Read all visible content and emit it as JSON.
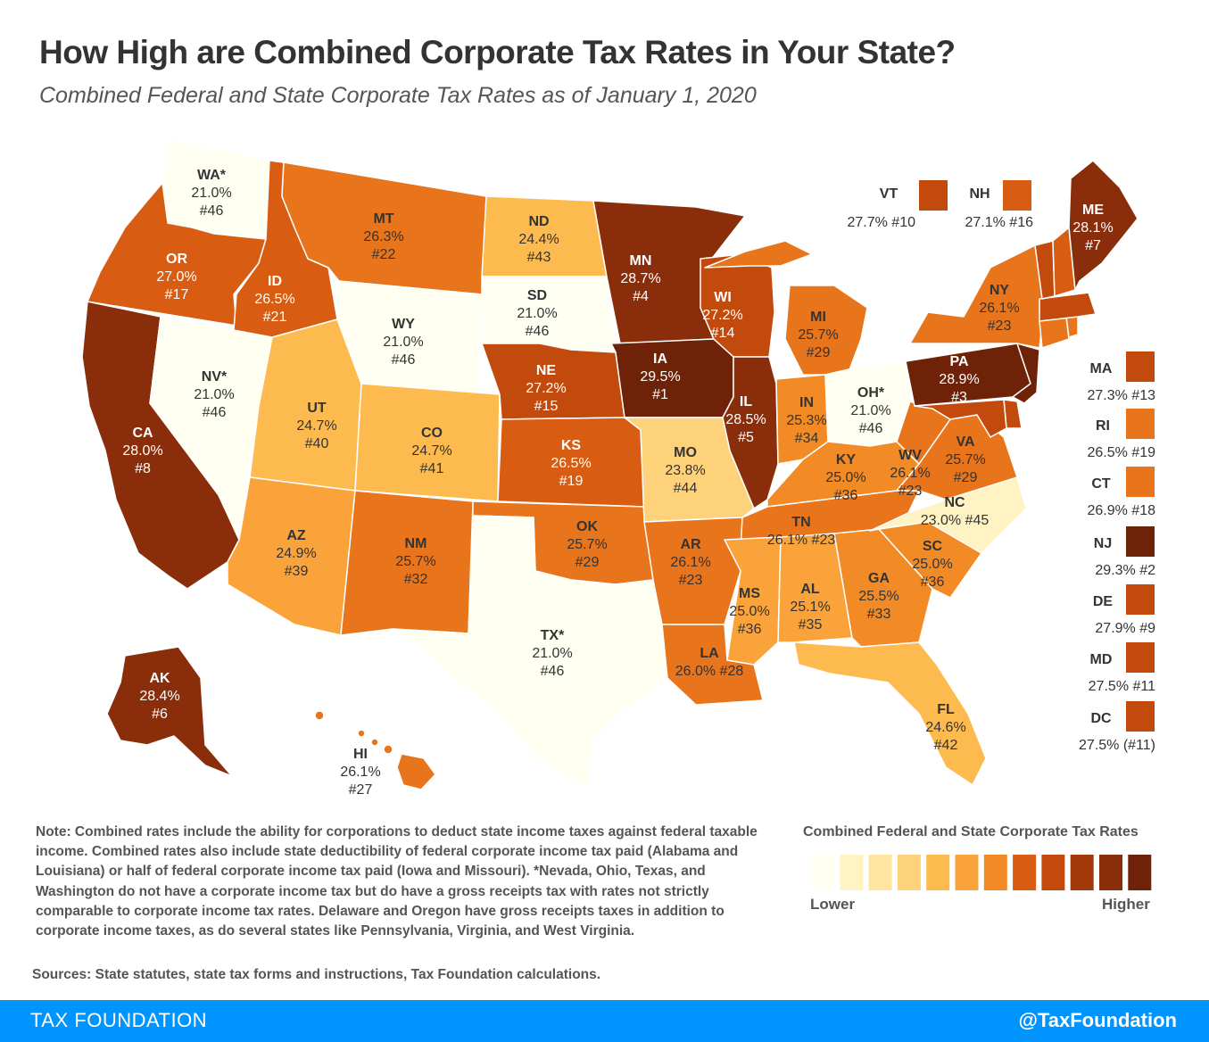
{
  "header": {
    "title": "How High are Combined Corporate Tax Rates in Your State?",
    "subtitle": "Combined Federal and State Corporate Tax Rates as of January 1, 2020"
  },
  "colors": {
    "c1": "#fffff2",
    "c2": "#fff3c4",
    "c3": "#fee6a0",
    "c4": "#fdd27a",
    "c5": "#fdbb4f",
    "c6": "#faa33a",
    "c7": "#f28a25",
    "c8": "#e8741c",
    "c9": "#d85c12",
    "c10": "#c24a0d",
    "c11": "#a3380a",
    "c12": "#8a2d0a",
    "c13": "#6e2208"
  },
  "states": [
    {
      "abbr": "WA*",
      "rate": "21.0%",
      "rank": "#46",
      "color": "c1"
    },
    {
      "abbr": "OR",
      "rate": "27.0%",
      "rank": "#17",
      "color": "c9"
    },
    {
      "abbr": "CA",
      "rate": "28.0%",
      "rank": "#8",
      "color": "c12"
    },
    {
      "abbr": "NV*",
      "rate": "21.0%",
      "rank": "#46",
      "color": "c1"
    },
    {
      "abbr": "ID",
      "rate": "26.5%",
      "rank": "#21",
      "color": "c9"
    },
    {
      "abbr": "MT",
      "rate": "26.3%",
      "rank": "#22",
      "color": "c8"
    },
    {
      "abbr": "WY",
      "rate": "21.0%",
      "rank": "#46",
      "color": "c1"
    },
    {
      "abbr": "UT",
      "rate": "24.7%",
      "rank": "#40",
      "color": "c5"
    },
    {
      "abbr": "CO",
      "rate": "24.7%",
      "rank": "#41",
      "color": "c5"
    },
    {
      "abbr": "AZ",
      "rate": "24.9%",
      "rank": "#39",
      "color": "c6"
    },
    {
      "abbr": "NM",
      "rate": "25.7%",
      "rank": "#32",
      "color": "c8"
    },
    {
      "abbr": "ND",
      "rate": "24.4%",
      "rank": "#43",
      "color": "c5"
    },
    {
      "abbr": "SD",
      "rate": "21.0%",
      "rank": "#46",
      "color": "c1"
    },
    {
      "abbr": "NE",
      "rate": "27.2%",
      "rank": "#15",
      "color": "c10"
    },
    {
      "abbr": "KS",
      "rate": "26.5%",
      "rank": "#19",
      "color": "c9"
    },
    {
      "abbr": "OK",
      "rate": "25.7%",
      "rank": "#29",
      "color": "c8"
    },
    {
      "abbr": "TX*",
      "rate": "21.0%",
      "rank": "#46",
      "color": "c1"
    },
    {
      "abbr": "MN",
      "rate": "28.7%",
      "rank": "#4",
      "color": "c12"
    },
    {
      "abbr": "IA",
      "rate": "29.5%",
      "rank": "#1",
      "color": "c13"
    },
    {
      "abbr": "MO",
      "rate": "23.8%",
      "rank": "#44",
      "color": "c4"
    },
    {
      "abbr": "AR",
      "rate": "26.1%",
      "rank": "#23",
      "color": "c8"
    },
    {
      "abbr": "LA",
      "rate": "26.0%",
      "rank": "#28",
      "color": "c8"
    },
    {
      "abbr": "WI",
      "rate": "27.2%",
      "rank": "#14",
      "color": "c10"
    },
    {
      "abbr": "IL",
      "rate": "28.5%",
      "rank": "#5",
      "color": "c12"
    },
    {
      "abbr": "MI",
      "rate": "25.7%",
      "rank": "#29",
      "color": "c8"
    },
    {
      "abbr": "IN",
      "rate": "25.3%",
      "rank": "#34",
      "color": "c7"
    },
    {
      "abbr": "OH*",
      "rate": "21.0%",
      "rank": "#46",
      "color": "c1"
    },
    {
      "abbr": "KY",
      "rate": "25.0%",
      "rank": "#36",
      "color": "c7"
    },
    {
      "abbr": "TN",
      "rate": "26.1%",
      "rank": "#23",
      "color": "c8"
    },
    {
      "abbr": "MS",
      "rate": "25.0%",
      "rank": "#36",
      "color": "c6"
    },
    {
      "abbr": "AL",
      "rate": "25.1%",
      "rank": "#35",
      "color": "c6"
    },
    {
      "abbr": "GA",
      "rate": "25.5%",
      "rank": "#33",
      "color": "c7"
    },
    {
      "abbr": "FL",
      "rate": "24.6%",
      "rank": "#42",
      "color": "c5"
    },
    {
      "abbr": "SC",
      "rate": "25.0%",
      "rank": "#36",
      "color": "c7"
    },
    {
      "abbr": "NC",
      "rate": "23.0%",
      "rank": "#45",
      "color": "c2"
    },
    {
      "abbr": "VA",
      "rate": "25.7%",
      "rank": "#29",
      "color": "c8"
    },
    {
      "abbr": "WV",
      "rate": "26.1%",
      "rank": "#23",
      "color": "c8"
    },
    {
      "abbr": "PA",
      "rate": "28.9%",
      "rank": "#3",
      "color": "c13"
    },
    {
      "abbr": "NY",
      "rate": "26.1%",
      "rank": "#23",
      "color": "c8"
    },
    {
      "abbr": "ME",
      "rate": "28.1%",
      "rank": "#7",
      "color": "c12"
    },
    {
      "abbr": "AK",
      "rate": "28.4%",
      "rank": "#6",
      "color": "c12"
    },
    {
      "abbr": "HI",
      "rate": "26.1%",
      "rank": "#27",
      "color": "c8"
    }
  ],
  "callouts": [
    {
      "abbr": "VT",
      "rate": "27.7%",
      "rank": "#10",
      "color": "c10"
    },
    {
      "abbr": "NH",
      "rate": "27.1%",
      "rank": "#16",
      "color": "c9"
    },
    {
      "abbr": "MA",
      "rate": "27.3%",
      "rank": "#13",
      "color": "c10"
    },
    {
      "abbr": "RI",
      "rate": "26.5%",
      "rank": "#19",
      "color": "c8"
    },
    {
      "abbr": "CT",
      "rate": "26.9%",
      "rank": "#18",
      "color": "c8"
    },
    {
      "abbr": "NJ",
      "rate": "29.3%",
      "rank": "#2",
      "color": "c13"
    },
    {
      "abbr": "DE",
      "rate": "27.9%",
      "rank": "#9",
      "color": "c10"
    },
    {
      "abbr": "MD",
      "rate": "27.5%",
      "rank": "#11",
      "color": "c10"
    },
    {
      "abbr": "DC",
      "rate": "27.5%",
      "rank": "(#11)",
      "color": "c10"
    }
  ],
  "legend": {
    "title": "Combined Federal and State Corporate Tax Rates",
    "lower": "Lower",
    "higher": "Higher",
    "swatches": [
      "c1",
      "c2",
      "c3",
      "c4",
      "c5",
      "c6",
      "c7",
      "c9",
      "c10",
      "c11",
      "c12",
      "c13"
    ]
  },
  "note": "Note: Combined rates include the ability for corporations to deduct state income taxes against federal taxable income. Combined rates also include state deductibility of federal corporate income tax paid (Alabama and Louisiana) or half of federal corporate income tax paid (Iowa and Missouri). *Nevada, Ohio, Texas, and Washington do not have a corporate income tax but do have a gross receipts tax with rates not strictly comparable to corporate income tax rates. Delaware and Oregon have gross receipts taxes in addition to corporate income taxes, as do several states like Pennsylvania, Virginia, and West Virginia.",
  "sources": "Sources: State statutes, state tax forms and instructions, Tax Foundation calculations.",
  "footer": {
    "left": "TAX FOUNDATION",
    "right": "@TaxFoundation"
  }
}
